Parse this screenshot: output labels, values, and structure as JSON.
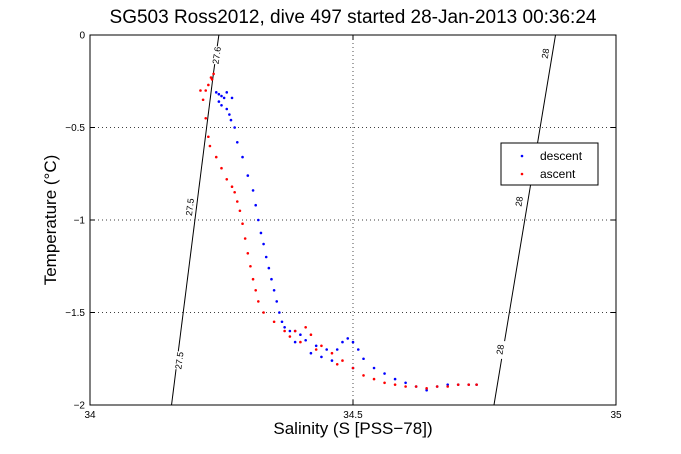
{
  "chart_data": {
    "type": "scatter",
    "title": "SG503 Ross2012, dive 497 started 28-Jan-2013 00:36:24",
    "xlabel": "Salinity (S [PSS−78])",
    "ylabel": "Temperature (°C)",
    "xlim": [
      34,
      35
    ],
    "ylim": [
      -2,
      0
    ],
    "xticks": [
      34,
      34.5,
      35
    ],
    "xtick_labels": [
      "34",
      "34.5",
      "35"
    ],
    "yticks": [
      0,
      -0.5,
      -1,
      -1.5,
      -2
    ],
    "ytick_labels": [
      "0",
      "−0.5",
      "−1",
      "−1.5",
      "−2"
    ],
    "grid": true,
    "legend_position": "right",
    "isopycnals": [
      {
        "label": "27.5",
        "points": [
          [
            34.155,
            -2.0
          ],
          [
            34.235,
            -0.2
          ]
        ],
        "label_positions": [
          [
            34.17,
            -1.76
          ],
          [
            34.19,
            -0.93
          ]
        ]
      },
      {
        "label": "27.6",
        "points": [
          [
            34.235,
            -0.2
          ],
          [
            34.245,
            0.0
          ]
        ],
        "label_positions": [
          [
            34.241,
            -0.11
          ]
        ]
      },
      {
        "label": "28",
        "points": [
          [
            34.768,
            -2.0
          ],
          [
            34.885,
            0.0
          ]
        ],
        "label_positions": [
          [
            34.78,
            -1.7
          ],
          [
            34.816,
            -0.9
          ],
          [
            34.866,
            -0.1
          ]
        ]
      }
    ],
    "series": [
      {
        "name": "descent",
        "color": "#0000ff",
        "points": [
          [
            34.24,
            -0.31
          ],
          [
            34.245,
            -0.32
          ],
          [
            34.25,
            -0.33
          ],
          [
            34.255,
            -0.34
          ],
          [
            34.26,
            -0.31
          ],
          [
            34.27,
            -0.34
          ],
          [
            34.245,
            -0.36
          ],
          [
            34.25,
            -0.38
          ],
          [
            34.26,
            -0.4
          ],
          [
            34.265,
            -0.43
          ],
          [
            34.268,
            -0.46
          ],
          [
            34.275,
            -0.5
          ],
          [
            34.28,
            -0.58
          ],
          [
            34.29,
            -0.66
          ],
          [
            34.3,
            -0.76
          ],
          [
            34.31,
            -0.84
          ],
          [
            34.315,
            -0.92
          ],
          [
            34.32,
            -1.0
          ],
          [
            34.325,
            -1.07
          ],
          [
            34.33,
            -1.13
          ],
          [
            34.335,
            -1.2
          ],
          [
            34.34,
            -1.26
          ],
          [
            34.345,
            -1.32
          ],
          [
            34.35,
            -1.38
          ],
          [
            34.355,
            -1.44
          ],
          [
            34.36,
            -1.5
          ],
          [
            34.365,
            -1.55
          ],
          [
            34.37,
            -1.58
          ],
          [
            34.38,
            -1.6
          ],
          [
            34.39,
            -1.6
          ],
          [
            34.4,
            -1.62
          ],
          [
            34.41,
            -1.65
          ],
          [
            34.43,
            -1.68
          ],
          [
            34.45,
            -1.7
          ],
          [
            34.47,
            -1.7
          ],
          [
            34.48,
            -1.66
          ],
          [
            34.49,
            -1.64
          ],
          [
            34.5,
            -1.66
          ],
          [
            34.51,
            -1.7
          ],
          [
            34.52,
            -1.75
          ],
          [
            34.54,
            -1.8
          ],
          [
            34.56,
            -1.83
          ],
          [
            34.58,
            -1.86
          ],
          [
            34.6,
            -1.88
          ],
          [
            34.62,
            -1.9
          ],
          [
            34.64,
            -1.92
          ],
          [
            34.66,
            -1.9
          ],
          [
            34.68,
            -1.89
          ],
          [
            34.7,
            -1.89
          ],
          [
            34.72,
            -1.89
          ],
          [
            34.735,
            -1.89
          ],
          [
            34.39,
            -1.66
          ],
          [
            34.42,
            -1.72
          ],
          [
            34.44,
            -1.74
          ],
          [
            34.46,
            -1.76
          ],
          [
            34.5,
            -1.8
          ]
        ]
      },
      {
        "name": "ascent",
        "color": "#ff0000",
        "points": [
          [
            34.235,
            -0.21
          ],
          [
            34.23,
            -0.23
          ],
          [
            34.232,
            -0.24
          ],
          [
            34.225,
            -0.27
          ],
          [
            34.22,
            -0.3
          ],
          [
            34.21,
            -0.3
          ],
          [
            34.215,
            -0.35
          ],
          [
            34.22,
            -0.45
          ],
          [
            34.225,
            -0.55
          ],
          [
            34.228,
            -0.6
          ],
          [
            34.24,
            -0.66
          ],
          [
            34.25,
            -0.72
          ],
          [
            34.26,
            -0.78
          ],
          [
            34.27,
            -0.82
          ],
          [
            34.275,
            -0.85
          ],
          [
            34.28,
            -0.9
          ],
          [
            34.285,
            -0.95
          ],
          [
            34.29,
            -1.02
          ],
          [
            34.295,
            -1.1
          ],
          [
            34.3,
            -1.18
          ],
          [
            34.305,
            -1.25
          ],
          [
            34.31,
            -1.32
          ],
          [
            34.315,
            -1.38
          ],
          [
            34.32,
            -1.44
          ],
          [
            34.33,
            -1.5
          ],
          [
            34.35,
            -1.55
          ],
          [
            34.37,
            -1.6
          ],
          [
            34.39,
            -1.6
          ],
          [
            34.41,
            -1.58
          ],
          [
            34.42,
            -1.62
          ],
          [
            34.44,
            -1.68
          ],
          [
            34.46,
            -1.72
          ],
          [
            34.48,
            -1.76
          ],
          [
            34.5,
            -1.8
          ],
          [
            34.52,
            -1.84
          ],
          [
            34.54,
            -1.86
          ],
          [
            34.56,
            -1.88
          ],
          [
            34.58,
            -1.89
          ],
          [
            34.6,
            -1.9
          ],
          [
            34.62,
            -1.9
          ],
          [
            34.64,
            -1.91
          ],
          [
            34.66,
            -1.9
          ],
          [
            34.68,
            -1.9
          ],
          [
            34.7,
            -1.89
          ],
          [
            34.72,
            -1.89
          ],
          [
            34.735,
            -1.89
          ],
          [
            34.38,
            -1.63
          ],
          [
            34.4,
            -1.66
          ],
          [
            34.43,
            -1.7
          ],
          [
            34.47,
            -1.78
          ]
        ]
      }
    ]
  }
}
